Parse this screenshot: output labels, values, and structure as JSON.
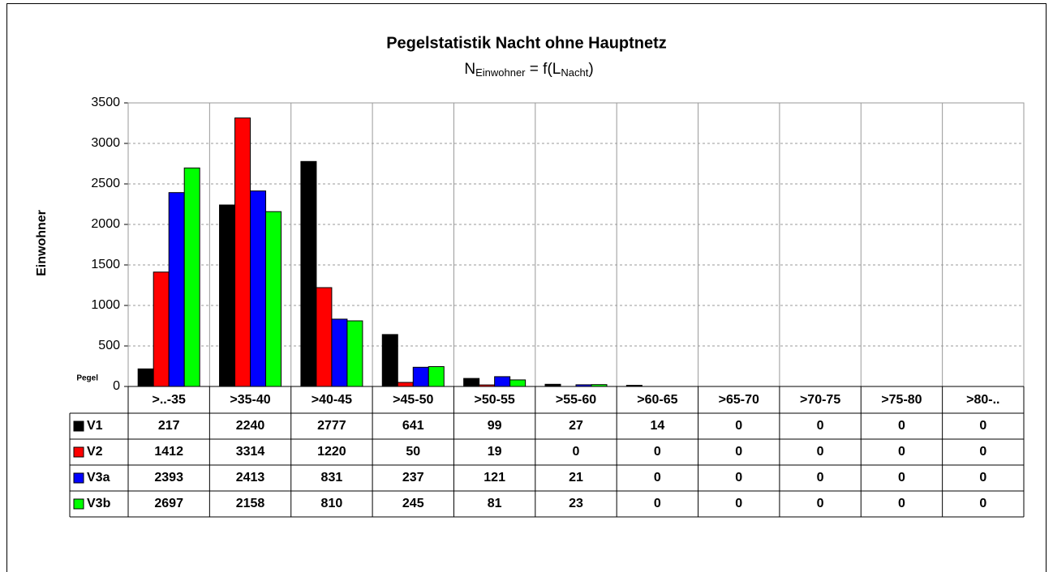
{
  "chart_data": {
    "type": "bar",
    "title": "Pegelstatistik Nacht ohne Hauptnetz",
    "subtitle_parts": [
      "N",
      "Einwohner",
      " = f(L",
      "Nacht",
      ")"
    ],
    "y_label": "Einwohner",
    "x_label": "Pegel",
    "categories": [
      ">..-35",
      ">35-40",
      ">40-45",
      ">45-50",
      ">50-55",
      ">55-60",
      ">60-65",
      ">65-70",
      ">70-75",
      ">75-80",
      ">80-.."
    ],
    "series": [
      {
        "name": "V1",
        "color": "#000000",
        "values": [
          217,
          2240,
          2777,
          641,
          99,
          27,
          14,
          0,
          0,
          0,
          0
        ]
      },
      {
        "name": "V2",
        "color": "#ff0000",
        "values": [
          1412,
          3314,
          1220,
          50,
          19,
          0,
          0,
          0,
          0,
          0,
          0
        ]
      },
      {
        "name": "V3a",
        "color": "#0000ff",
        "values": [
          2393,
          2413,
          831,
          237,
          121,
          21,
          0,
          0,
          0,
          0,
          0
        ]
      },
      {
        "name": "V3b",
        "color": "#00ff00",
        "values": [
          2697,
          2158,
          810,
          245,
          81,
          23,
          0,
          0,
          0,
          0,
          0
        ]
      }
    ],
    "ylim": [
      0,
      3500
    ],
    "yticks": [
      0,
      500,
      1000,
      1500,
      2000,
      2500,
      3000,
      3500
    ],
    "grid": true
  }
}
